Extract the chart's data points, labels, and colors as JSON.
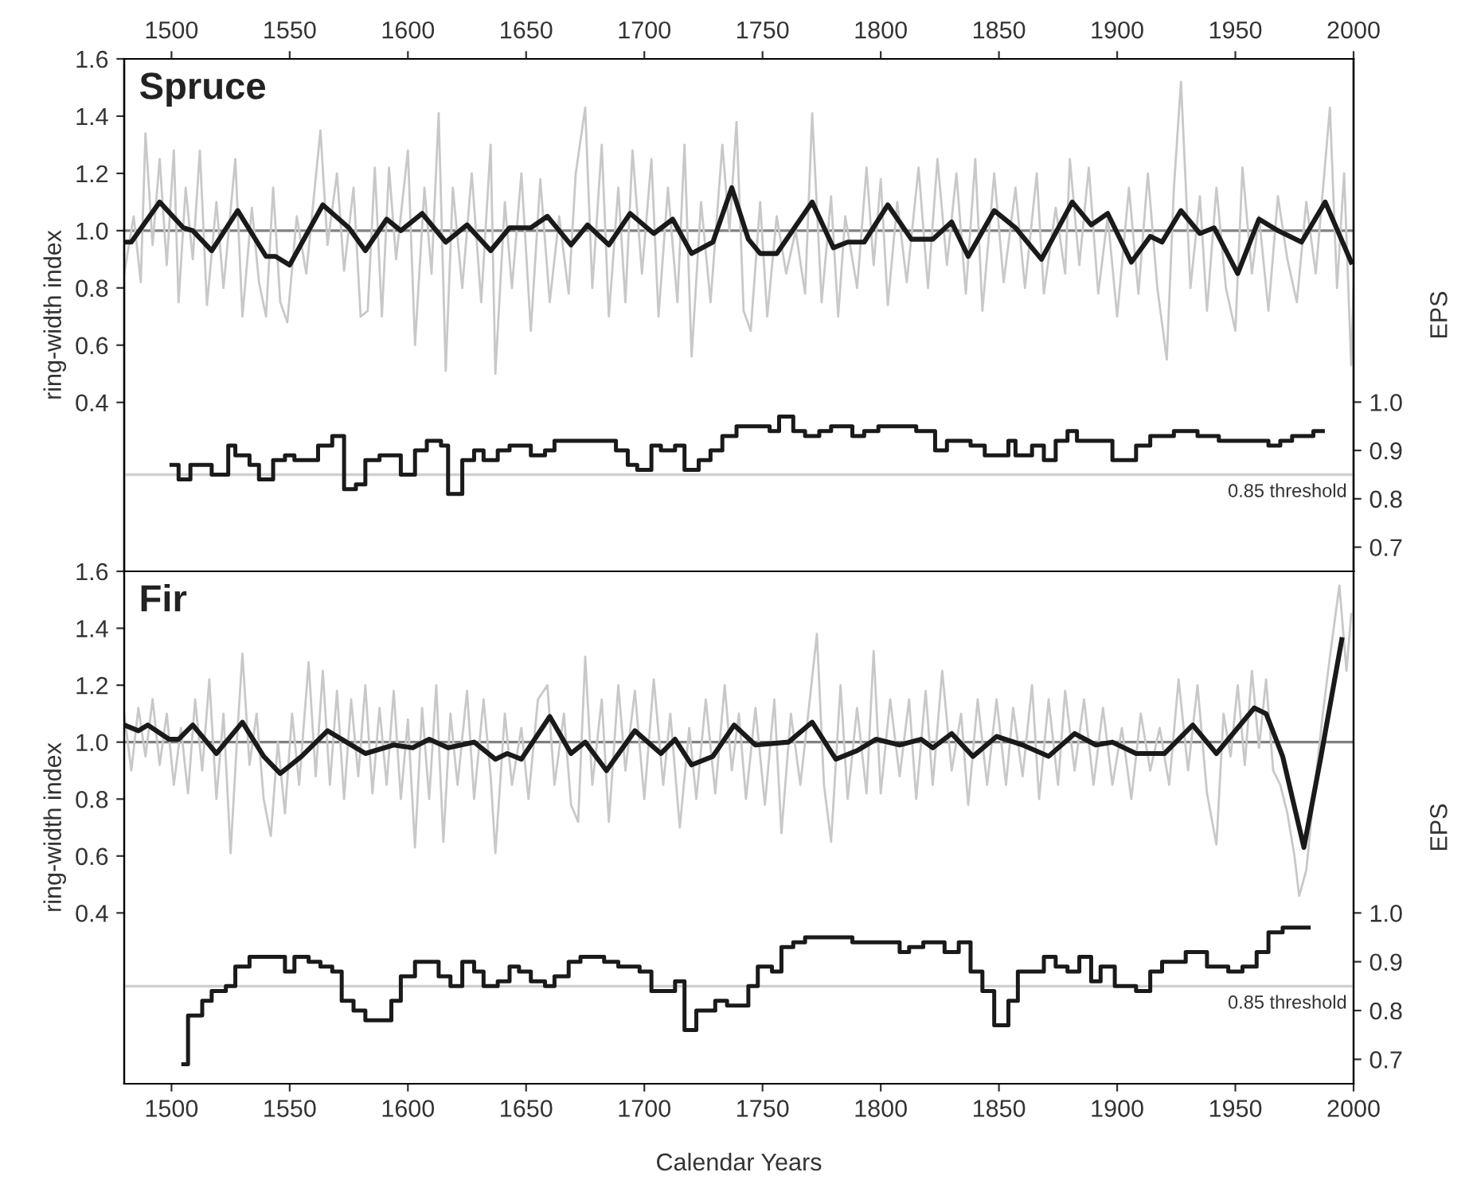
{
  "chart_data": [
    {
      "type": "line",
      "title": "Spruce",
      "ylabel": "ring-width index",
      "y2label": "EPS",
      "xlim": [
        1480,
        2000
      ],
      "x2lim": [
        1480,
        2000
      ],
      "x2ticks": [
        1500,
        1550,
        1600,
        1650,
        1700,
        1750,
        1800,
        1850,
        1900,
        1950,
        2000
      ],
      "ylim": [
        -0.19,
        1.6
      ],
      "yticks": [
        0.4,
        0.6,
        0.8,
        {
          "value": 1,
          "label": "1.0"
        },
        1.2,
        1.4,
        1.6
      ],
      "y2lim": [
        0.65,
        1.71
      ],
      "y2ticks": [
        0.7,
        0.8,
        0.9,
        {
          "value": 1,
          "label": "1.0"
        }
      ],
      "ref_lines": [
        {
          "axis": "y",
          "value": 1.0,
          "color": "#808080"
        },
        {
          "axis": "y2",
          "value": 0.85,
          "label": "0.85 threshold",
          "color": "#d0d0d0"
        }
      ],
      "series": [
        {
          "color": "#c8c8c8",
          "x": [
            1480,
            1484,
            1487,
            1489,
            1492,
            1495,
            1498,
            1501,
            1503,
            1506,
            1509,
            1512,
            1515,
            1519,
            1522,
            1527,
            1530,
            1534,
            1537,
            1540,
            1543,
            1546,
            1549,
            1553,
            1557,
            1563,
            1566,
            1570,
            1573,
            1577,
            1580,
            1583,
            1586,
            1589,
            1592,
            1595,
            1600,
            1603,
            1607,
            1610,
            1613,
            1616,
            1619,
            1623,
            1627,
            1631,
            1635,
            1637,
            1641,
            1644,
            1648,
            1652,
            1656,
            1660,
            1664,
            1668,
            1671,
            1675,
            1678,
            1682,
            1685,
            1689,
            1692,
            1695,
            1699,
            1703,
            1706,
            1710,
            1714,
            1717,
            1720,
            1724,
            1728,
            1733,
            1736,
            1739,
            1742,
            1745,
            1749,
            1752,
            1756,
            1760,
            1764,
            1768,
            1771,
            1775,
            1779,
            1782,
            1785,
            1790,
            1794,
            1797,
            1800,
            1803,
            1807,
            1811,
            1816,
            1820,
            1824,
            1828,
            1832,
            1836,
            1840,
            1843,
            1848,
            1852,
            1857,
            1861,
            1866,
            1869,
            1874,
            1878,
            1880,
            1884,
            1888,
            1892,
            1896,
            1900,
            1905,
            1909,
            1913,
            1917,
            1921,
            1924,
            1927,
            1931,
            1935,
            1938,
            1942,
            1946,
            1950,
            1953,
            1957,
            1960,
            1964,
            1968,
            1972,
            1976,
            1980,
            1984,
            1990,
            1993,
            1996,
            1999,
            2000
          ],
          "values": [
            0.85,
            1.05,
            0.82,
            1.34,
            0.95,
            1.25,
            0.88,
            1.28,
            0.75,
            1.15,
            0.9,
            1.28,
            0.74,
            1.1,
            0.8,
            1.25,
            0.7,
            1.08,
            0.82,
            0.7,
            1.15,
            0.75,
            0.68,
            1.05,
            0.85,
            1.35,
            0.95,
            1.2,
            0.86,
            1.15,
            0.7,
            0.72,
            1.22,
            0.7,
            1.22,
            0.9,
            1.28,
            0.6,
            1.15,
            0.85,
            1.41,
            0.51,
            1.15,
            0.8,
            1.2,
            0.75,
            1.3,
            0.5,
            1.1,
            0.8,
            1.2,
            0.65,
            1.18,
            0.75,
            1.05,
            0.78,
            1.2,
            1.43,
            0.8,
            1.3,
            0.7,
            1.15,
            0.75,
            1.28,
            0.85,
            1.25,
            0.7,
            1.15,
            0.75,
            1.3,
            0.56,
            1.1,
            0.75,
            1.3,
            1.0,
            1.38,
            0.72,
            0.65,
            1.1,
            0.7,
            1.05,
            0.85,
            1.0,
            0.78,
            1.41,
            0.75,
            1.12,
            0.7,
            1.05,
            0.8,
            1.22,
            0.88,
            1.18,
            0.74,
            1.1,
            0.82,
            1.22,
            0.8,
            1.25,
            0.88,
            1.2,
            0.78,
            1.25,
            0.72,
            1.2,
            0.82,
            1.15,
            0.8,
            1.2,
            0.78,
            1.08,
            0.85,
            1.25,
            0.88,
            1.22,
            0.78,
            1.05,
            0.7,
            1.15,
            0.78,
            1.2,
            0.8,
            0.55,
            1.15,
            1.52,
            0.8,
            1.12,
            0.72,
            1.15,
            0.8,
            0.65,
            1.22,
            0.85,
            1.05,
            0.72,
            1.12,
            0.9,
            0.75,
            1.1,
            0.85,
            1.43,
            0.8,
            1.2,
            0.53,
            0.8
          ]
        },
        {
          "color": "#1a1a1a",
          "x": [
            1480,
            1483,
            1495,
            1505,
            1509,
            1517,
            1528,
            1540,
            1544,
            1550,
            1564,
            1575,
            1582,
            1591,
            1597,
            1606,
            1616,
            1625,
            1635,
            1643,
            1652,
            1659,
            1669,
            1676,
            1685,
            1694,
            1704,
            1712,
            1720,
            1729,
            1737,
            1744,
            1749,
            1756,
            1771,
            1780,
            1786,
            1793,
            1803,
            1813,
            1822,
            1830,
            1837,
            1848,
            1857,
            1868,
            1881,
            1889,
            1896,
            1906,
            1914,
            1919,
            1927,
            1935,
            1941,
            1951,
            1960,
            1968,
            1978,
            1988,
            1999
          ],
          "values": [
            0.96,
            0.96,
            1.1,
            1.01,
            1.0,
            0.93,
            1.07,
            0.91,
            0.91,
            0.88,
            1.09,
            1.01,
            0.93,
            1.04,
            1.0,
            1.06,
            0.96,
            1.02,
            0.93,
            1.01,
            1.01,
            1.05,
            0.95,
            1.02,
            0.95,
            1.06,
            0.99,
            1.04,
            0.92,
            0.96,
            1.15,
            0.97,
            0.92,
            0.92,
            1.1,
            0.94,
            0.96,
            0.96,
            1.09,
            0.97,
            0.97,
            1.03,
            0.91,
            1.07,
            1.01,
            0.9,
            1.1,
            1.02,
            1.06,
            0.89,
            0.98,
            0.96,
            1.07,
            0.99,
            1.01,
            0.85,
            1.04,
            1.0,
            0.96,
            1.1,
            0.89
          ]
        },
        {
          "type": "step",
          "axis": "y2",
          "color": "#1a1a1a",
          "x": [
            1500,
            1503,
            1508,
            1517,
            1524,
            1527,
            1533,
            1537,
            1543,
            1548,
            1552,
            1562,
            1568,
            1573,
            1578,
            1582,
            1588,
            1597,
            1603,
            1608,
            1614,
            1617,
            1623,
            1628,
            1632,
            1638,
            1643,
            1652,
            1658,
            1662,
            1666,
            1673,
            1688,
            1693,
            1697,
            1703,
            1707,
            1713,
            1717,
            1723,
            1728,
            1733,
            1739,
            1753,
            1757,
            1763,
            1768,
            1774,
            1779,
            1788,
            1793,
            1799,
            1815,
            1823,
            1828,
            1838,
            1844,
            1854,
            1857,
            1864,
            1869,
            1874,
            1879,
            1883,
            1889,
            1898,
            1908,
            1914,
            1924,
            1934,
            1943,
            1958,
            1964,
            1969,
            1974,
            1983,
            1987
          ],
          "values": [
            0.87,
            0.84,
            0.87,
            0.85,
            0.91,
            0.89,
            0.87,
            0.84,
            0.88,
            0.89,
            0.88,
            0.91,
            0.93,
            0.82,
            0.83,
            0.88,
            0.89,
            0.85,
            0.9,
            0.92,
            0.91,
            0.81,
            0.88,
            0.9,
            0.88,
            0.9,
            0.91,
            0.89,
            0.9,
            0.92,
            0.92,
            0.92,
            0.9,
            0.87,
            0.86,
            0.91,
            0.9,
            0.91,
            0.86,
            0.88,
            0.9,
            0.93,
            0.95,
            0.94,
            0.97,
            0.94,
            0.93,
            0.94,
            0.95,
            0.93,
            0.94,
            0.95,
            0.94,
            0.9,
            0.92,
            0.91,
            0.89,
            0.92,
            0.89,
            0.91,
            0.88,
            0.92,
            0.94,
            0.92,
            0.92,
            0.88,
            0.91,
            0.93,
            0.94,
            0.93,
            0.92,
            0.92,
            0.91,
            0.92,
            0.93,
            0.94,
            0.94
          ]
        }
      ]
    },
    {
      "type": "line",
      "title": "Fir",
      "ylabel": "ring-width index",
      "y2label": "EPS",
      "xlabel": "Calendar Years",
      "xlim": [
        1480,
        2000
      ],
      "xticks": [
        1500,
        1550,
        1600,
        1650,
        1700,
        1750,
        1800,
        1850,
        1900,
        1950,
        2000
      ],
      "ylim": [
        -0.2,
        1.6
      ],
      "yticks": [
        0.4,
        0.6,
        0.8,
        {
          "value": 1,
          "label": "1.0"
        },
        1.2,
        1.4,
        1.6
      ],
      "y2lim": [
        0.65,
        1.7
      ],
      "y2ticks": [
        0.7,
        0.8,
        0.9,
        {
          "value": 1,
          "label": "1.0"
        }
      ],
      "ref_lines": [
        {
          "axis": "y",
          "value": 1.0,
          "color": "#808080"
        },
        {
          "axis": "y2",
          "value": 0.85,
          "label": "0.85 threshold",
          "color": "#d0d0d0"
        }
      ],
      "series": [
        {
          "color": "#c8c8c8",
          "x": [
            1480,
            1483,
            1486,
            1489,
            1492,
            1495,
            1498,
            1501,
            1504,
            1507,
            1510,
            1513,
            1516,
            1519,
            1522,
            1525,
            1528,
            1530,
            1533,
            1536,
            1539,
            1542,
            1545,
            1548,
            1551,
            1554,
            1558,
            1561,
            1564,
            1567,
            1570,
            1573,
            1576,
            1579,
            1582,
            1585,
            1588,
            1591,
            1594,
            1597,
            1600,
            1603,
            1606,
            1609,
            1612,
            1615,
            1618,
            1621,
            1625,
            1628,
            1632,
            1635,
            1637,
            1641,
            1644,
            1648,
            1651,
            1655,
            1659,
            1662,
            1666,
            1669,
            1672,
            1675,
            1678,
            1682,
            1685,
            1689,
            1692,
            1696,
            1700,
            1704,
            1708,
            1711,
            1715,
            1719,
            1722,
            1726,
            1730,
            1734,
            1737,
            1740,
            1743,
            1747,
            1751,
            1755,
            1758,
            1762,
            1766,
            1770,
            1773,
            1776,
            1779,
            1783,
            1786,
            1790,
            1794,
            1797,
            1800,
            1804,
            1808,
            1812,
            1815,
            1819,
            1822,
            1826,
            1830,
            1834,
            1837,
            1841,
            1845,
            1849,
            1853,
            1856,
            1860,
            1864,
            1867,
            1871,
            1875,
            1878,
            1882,
            1886,
            1890,
            1894,
            1898,
            1902,
            1906,
            1910,
            1914,
            1918,
            1922,
            1926,
            1930,
            1934,
            1938,
            1942,
            1945,
            1948,
            1951,
            1954,
            1957,
            1960,
            1963,
            1966,
            1969,
            1972,
            1975,
            1977,
            1980,
            1983,
            1987,
            1990,
            1994,
            1997,
            1999
          ],
          "values": [
            1.1,
            0.9,
            1.12,
            0.95,
            1.15,
            0.92,
            1.1,
            0.85,
            1.05,
            0.82,
            1.15,
            0.9,
            1.22,
            0.8,
            1.1,
            0.61,
            1.05,
            1.31,
            0.92,
            1.1,
            0.8,
            0.67,
            1.0,
            0.75,
            1.1,
            0.85,
            1.28,
            0.88,
            1.25,
            0.85,
            1.18,
            0.8,
            1.15,
            0.88,
            1.2,
            0.82,
            1.12,
            0.85,
            1.18,
            0.8,
            1.08,
            0.63,
            1.12,
            0.8,
            1.2,
            0.65,
            1.1,
            0.85,
            1.18,
            0.8,
            1.15,
            0.88,
            0.61,
            1.1,
            0.85,
            1.05,
            0.8,
            1.15,
            1.2,
            0.85,
            1.1,
            0.78,
            0.72,
            1.3,
            0.85,
            1.15,
            0.72,
            1.2,
            0.9,
            1.18,
            0.8,
            1.22,
            0.85,
            1.1,
            0.7,
            1.05,
            0.8,
            1.15,
            0.82,
            1.2,
            0.9,
            1.1,
            0.8,
            1.12,
            0.78,
            1.15,
            0.68,
            1.1,
            0.85,
            1.15,
            1.38,
            0.85,
            0.65,
            1.2,
            0.8,
            1.12,
            0.82,
            1.32,
            0.82,
            1.15,
            0.88,
            1.15,
            0.8,
            1.18,
            0.85,
            1.25,
            0.9,
            1.1,
            0.78,
            1.15,
            0.85,
            1.15,
            0.85,
            1.12,
            0.88,
            1.2,
            0.8,
            1.15,
            0.85,
            1.18,
            0.9,
            1.15,
            0.85,
            1.12,
            0.85,
            1.05,
            0.8,
            1.1,
            0.9,
            1.05,
            0.85,
            1.22,
            0.9,
            1.2,
            0.82,
            0.64,
            1.1,
            0.95,
            1.2,
            0.92,
            1.25,
            0.98,
            1.22,
            0.9,
            0.85,
            0.75,
            0.6,
            0.46,
            0.55,
            0.8,
            1.1,
            1.3,
            1.55,
            1.25,
            1.45
          ]
        },
        {
          "color": "#1a1a1a",
          "x": [
            1480,
            1486,
            1490,
            1499,
            1503,
            1509,
            1519,
            1530,
            1539,
            1546,
            1555,
            1566,
            1582,
            1594,
            1602,
            1609,
            1617,
            1628,
            1637,
            1642,
            1648,
            1660,
            1669,
            1675,
            1684,
            1696,
            1707,
            1713,
            1720,
            1729,
            1738,
            1747,
            1761,
            1771,
            1781,
            1790,
            1798,
            1808,
            1817,
            1822,
            1830,
            1839,
            1849,
            1860,
            1871,
            1882,
            1891,
            1898,
            1908,
            1920,
            1932,
            1942,
            1958,
            1963,
            1970,
            1979,
            1986,
            1995
          ],
          "values": [
            1.06,
            1.04,
            1.06,
            1.01,
            1.01,
            1.06,
            0.96,
            1.07,
            0.95,
            0.89,
            0.95,
            1.04,
            0.96,
            0.99,
            0.98,
            1.01,
            0.98,
            1.0,
            0.94,
            0.96,
            0.94,
            1.09,
            0.96,
            1.0,
            0.9,
            1.04,
            0.96,
            1.01,
            0.92,
            0.95,
            1.06,
            0.99,
            1.0,
            1.07,
            0.94,
            0.97,
            1.01,
            0.99,
            1.01,
            0.98,
            1.03,
            0.95,
            1.02,
            0.99,
            0.95,
            1.03,
            0.99,
            1.0,
            0.96,
            0.96,
            1.06,
            0.96,
            1.12,
            1.1,
            0.95,
            0.63,
            0.94,
            1.36
          ]
        },
        {
          "type": "step",
          "axis": "y2",
          "color": "#1a1a1a",
          "x": [
            1505,
            1507,
            1513,
            1517,
            1523,
            1527,
            1533,
            1542,
            1548,
            1552,
            1558,
            1563,
            1568,
            1572,
            1577,
            1582,
            1593,
            1597,
            1603,
            1613,
            1618,
            1623,
            1628,
            1632,
            1638,
            1643,
            1647,
            1652,
            1658,
            1662,
            1668,
            1673,
            1683,
            1689,
            1698,
            1703,
            1713,
            1717,
            1722,
            1730,
            1735,
            1739,
            1744,
            1748,
            1754,
            1758,
            1763,
            1768,
            1774,
            1783,
            1788,
            1793,
            1808,
            1812,
            1818,
            1827,
            1833,
            1838,
            1843,
            1848,
            1854,
            1858,
            1869,
            1874,
            1879,
            1884,
            1889,
            1893,
            1899,
            1908,
            1914,
            1919,
            1929,
            1938,
            1947,
            1953,
            1959,
            1964,
            1970,
            1974,
            1981
          ],
          "values": [
            0.69,
            0.79,
            0.82,
            0.84,
            0.85,
            0.89,
            0.91,
            0.91,
            0.88,
            0.91,
            0.9,
            0.89,
            0.88,
            0.82,
            0.8,
            0.78,
            0.82,
            0.87,
            0.9,
            0.87,
            0.85,
            0.9,
            0.88,
            0.85,
            0.86,
            0.89,
            0.88,
            0.86,
            0.85,
            0.87,
            0.9,
            0.91,
            0.9,
            0.89,
            0.88,
            0.84,
            0.86,
            0.76,
            0.8,
            0.82,
            0.81,
            0.81,
            0.85,
            0.89,
            0.88,
            0.93,
            0.94,
            0.95,
            0.95,
            0.95,
            0.94,
            0.94,
            0.92,
            0.93,
            0.94,
            0.92,
            0.94,
            0.88,
            0.84,
            0.77,
            0.82,
            0.88,
            0.91,
            0.89,
            0.88,
            0.91,
            0.86,
            0.89,
            0.85,
            0.84,
            0.88,
            0.9,
            0.92,
            0.89,
            0.88,
            0.89,
            0.92,
            0.96,
            0.97,
            0.97,
            0.97
          ]
        }
      ]
    }
  ]
}
